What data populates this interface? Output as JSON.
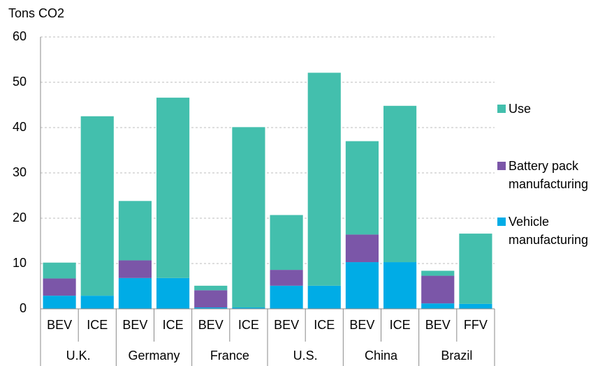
{
  "chart_data": {
    "type": "stacked_bar",
    "y_label": "Tons CO2",
    "categories": [
      "BEV",
      "ICE",
      "BEV",
      "ICE",
      "BEV",
      "ICE",
      "BEV",
      "ICE",
      "BEV",
      "ICE",
      "BEV",
      "FFV"
    ],
    "groups": [
      "U.K.",
      "Germany",
      "France",
      "U.S.",
      "China",
      "Brazil"
    ],
    "series": [
      {
        "name": "Use",
        "color": "#43bfad",
        "values": [
          3.5,
          39.6,
          13.1,
          39.8,
          1.0,
          39.8,
          12.1,
          47.0,
          20.6,
          34.5,
          1.1,
          15.5
        ]
      },
      {
        "name": "Battery pack manufacturing",
        "color": "#7b56a8",
        "values": [
          3.8,
          0,
          3.9,
          0,
          3.8,
          0,
          3.5,
          0,
          6.1,
          0,
          6.1,
          0
        ]
      },
      {
        "name": "Vehicle manufacturing",
        "color": "#00ace6",
        "values": [
          2.9,
          2.9,
          6.8,
          6.8,
          0.3,
          0.3,
          5.1,
          5.1,
          10.3,
          10.3,
          1.2,
          1.1
        ]
      }
    ],
    "ylim": [
      0,
      60
    ],
    "yticks": [
      0,
      10,
      20,
      30,
      40,
      50,
      60
    ],
    "grid": true,
    "legend": "right"
  }
}
